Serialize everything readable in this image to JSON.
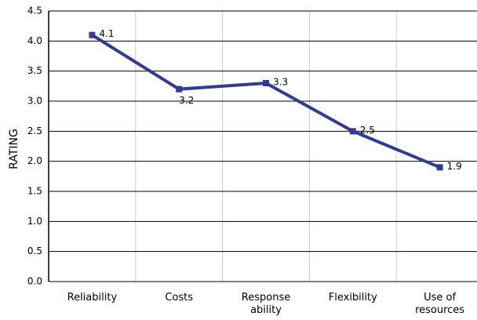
{
  "chart_data": {
    "type": "line",
    "y_label": "RATING",
    "categories": [
      "Reliability",
      "Costs",
      "Response\nability",
      "Flexibility",
      "Use of\nresources"
    ],
    "series": [
      {
        "name": "Rating",
        "color": "#2e3a9c",
        "values": [
          4.1,
          3.2,
          3.3,
          2.5,
          1.9
        ]
      }
    ],
    "ylim": [
      0,
      4.5
    ],
    "yticks": [
      {
        "value": 0,
        "label": "0.0"
      },
      0.5,
      {
        "value": 1,
        "label": "1.0"
      },
      1.5,
      {
        "value": 2,
        "label": "2.0"
      },
      2.5,
      {
        "value": 3,
        "label": "3.0"
      },
      3.5,
      {
        "value": 4,
        "label": "4.0"
      },
      4.5
    ],
    "grid": true
  }
}
